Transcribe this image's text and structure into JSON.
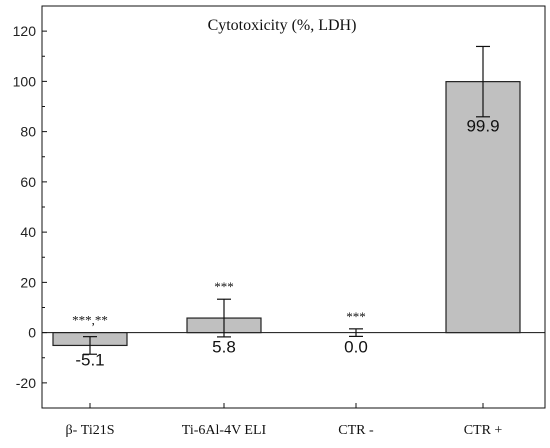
{
  "chart_data": {
    "type": "bar",
    "title": "Cytotoxicity (%, LDH)",
    "xlabel": "",
    "ylabel": "",
    "categories": [
      "β- Ti21S",
      "Ti-6Al-4V ELI",
      "CTR -",
      "CTR +"
    ],
    "values": [
      -5.1,
      5.8,
      0.0,
      99.9
    ],
    "value_labels": [
      "-5.1",
      "5.8",
      "0.0",
      "99.9"
    ],
    "error_bars": [
      3.5,
      7.5,
      1.5,
      14.0
    ],
    "significance": [
      "***,**",
      "***",
      "***",
      ""
    ],
    "ylim": [
      -30,
      130
    ],
    "yticks": [
      -20,
      0,
      20,
      40,
      60,
      80,
      100,
      120
    ],
    "grid": false,
    "bar_color": "#c0c0c0",
    "bar_edge_color": "#222222"
  }
}
